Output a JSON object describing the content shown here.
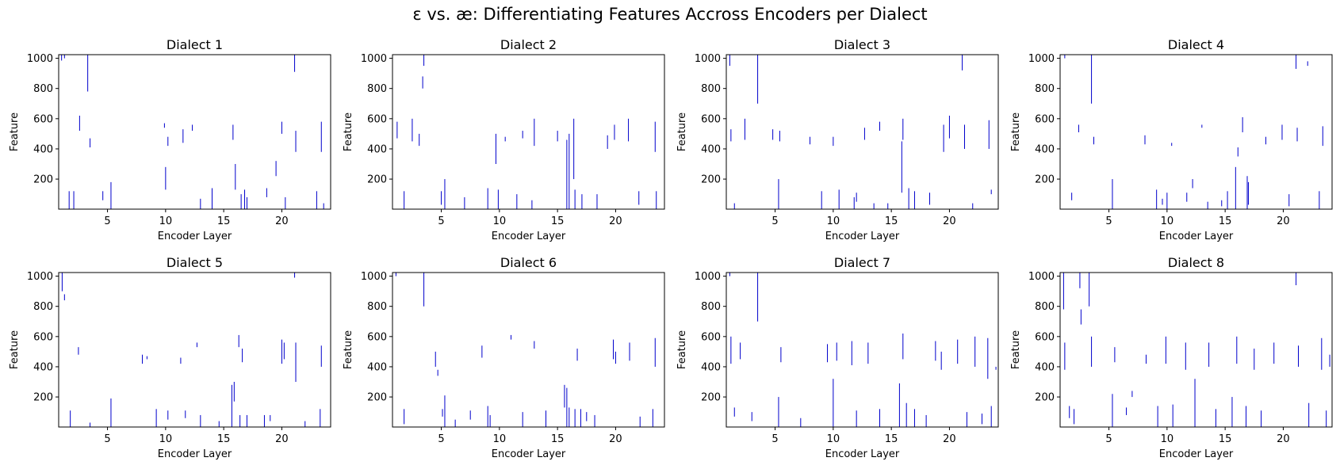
{
  "figure": {
    "title": "ɛ vs. æ: Differentiating Features Accross Encoders per Dialect"
  },
  "chart_data": {
    "type": "line",
    "xlabel": "Encoder Layer",
    "ylabel": "Feature",
    "xlim": [
      0.8,
      24.2
    ],
    "ylim": [
      1,
      1024
    ],
    "xticks": [
      5,
      10,
      15,
      20
    ],
    "yticks": [
      200,
      400,
      600,
      800,
      1000
    ],
    "line_color": "#0000cc",
    "panels": [
      {
        "title": "Dialect 1",
        "segments": [
          [
            1.05,
            985,
            1024
          ],
          [
            1.3,
            1000,
            1024
          ],
          [
            2.1,
            0,
            120
          ],
          [
            2.6,
            520,
            620
          ],
          [
            3.3,
            780,
            1024
          ],
          [
            3.5,
            410,
            470
          ],
          [
            5.3,
            0,
            180
          ],
          [
            4.6,
            60,
            120
          ],
          [
            10.0,
            130,
            280
          ],
          [
            10.2,
            420,
            480
          ],
          [
            9.9,
            540,
            570
          ],
          [
            11.5,
            440,
            530
          ],
          [
            12.3,
            520,
            560
          ],
          [
            15.8,
            460,
            560
          ],
          [
            16.0,
            130,
            300
          ],
          [
            16.5,
            0,
            100
          ],
          [
            16.8,
            0,
            130
          ],
          [
            17.0,
            0,
            80
          ],
          [
            19.5,
            220,
            320
          ],
          [
            20.0,
            500,
            580
          ],
          [
            20.3,
            0,
            80
          ],
          [
            21.1,
            910,
            1024
          ],
          [
            21.2,
            380,
            520
          ],
          [
            23.0,
            0,
            120
          ],
          [
            23.4,
            380,
            580
          ],
          [
            23.6,
            0,
            40
          ],
          [
            13.0,
            0,
            70
          ],
          [
            14.0,
            0,
            140
          ],
          [
            1.7,
            0,
            120
          ],
          [
            18.7,
            80,
            140
          ]
        ]
      },
      {
        "title": "Dialect 2",
        "segments": [
          [
            1.2,
            470,
            580
          ],
          [
            2.5,
            450,
            600
          ],
          [
            3.1,
            420,
            500
          ],
          [
            3.4,
            800,
            880
          ],
          [
            3.5,
            950,
            1024
          ],
          [
            5.3,
            0,
            200
          ],
          [
            5.0,
            30,
            120
          ],
          [
            9.7,
            300,
            500
          ],
          [
            9.0,
            0,
            140
          ],
          [
            9.9,
            0,
            130
          ],
          [
            10.5,
            450,
            480
          ],
          [
            12.0,
            470,
            520
          ],
          [
            13.0,
            420,
            600
          ],
          [
            15.0,
            450,
            520
          ],
          [
            15.8,
            0,
            460
          ],
          [
            16.0,
            0,
            500
          ],
          [
            16.4,
            200,
            600
          ],
          [
            16.5,
            0,
            130
          ],
          [
            17.1,
            0,
            100
          ],
          [
            19.3,
            400,
            490
          ],
          [
            19.9,
            460,
            560
          ],
          [
            21.1,
            450,
            600
          ],
          [
            22.0,
            30,
            120
          ],
          [
            23.4,
            380,
            580
          ],
          [
            23.5,
            0,
            120
          ],
          [
            7.0,
            0,
            80
          ],
          [
            11.5,
            0,
            100
          ],
          [
            1.8,
            0,
            120
          ],
          [
            18.4,
            0,
            100
          ],
          [
            12.8,
            0,
            60
          ]
        ]
      },
      {
        "title": "Dialect 3",
        "segments": [
          [
            1.1,
            950,
            1024
          ],
          [
            1.2,
            450,
            530
          ],
          [
            2.4,
            460,
            600
          ],
          [
            3.5,
            700,
            1024
          ],
          [
            4.8,
            460,
            530
          ],
          [
            5.3,
            0,
            200
          ],
          [
            5.4,
            450,
            520
          ],
          [
            8.0,
            430,
            480
          ],
          [
            10.0,
            420,
            480
          ],
          [
            10.5,
            0,
            130
          ],
          [
            12.7,
            460,
            540
          ],
          [
            14.0,
            520,
            580
          ],
          [
            15.9,
            110,
            450
          ],
          [
            16.0,
            460,
            600
          ],
          [
            16.5,
            0,
            140
          ],
          [
            17.0,
            0,
            120
          ],
          [
            19.5,
            380,
            560
          ],
          [
            20.0,
            470,
            620
          ],
          [
            21.1,
            920,
            1024
          ],
          [
            21.3,
            400,
            560
          ],
          [
            23.4,
            400,
            590
          ],
          [
            23.6,
            100,
            130
          ],
          [
            9.0,
            0,
            120
          ],
          [
            12.0,
            50,
            110
          ],
          [
            1.5,
            0,
            40
          ],
          [
            18.3,
            30,
            110
          ],
          [
            22.0,
            0,
            40
          ],
          [
            11.8,
            0,
            80
          ],
          [
            13.5,
            0,
            40
          ],
          [
            14.7,
            0,
            40
          ]
        ]
      },
      {
        "title": "Dialect 4",
        "segments": [
          [
            1.2,
            1000,
            1024
          ],
          [
            2.4,
            510,
            560
          ],
          [
            3.5,
            700,
            1024
          ],
          [
            3.7,
            430,
            480
          ],
          [
            5.3,
            0,
            200
          ],
          [
            8.1,
            430,
            490
          ],
          [
            9.1,
            0,
            130
          ],
          [
            10.4,
            420,
            440
          ],
          [
            12.2,
            140,
            200
          ],
          [
            13.0,
            540,
            560
          ],
          [
            15.9,
            0,
            280
          ],
          [
            16.1,
            350,
            410
          ],
          [
            16.5,
            510,
            610
          ],
          [
            16.9,
            0,
            220
          ],
          [
            17.0,
            30,
            180
          ],
          [
            18.5,
            430,
            480
          ],
          [
            19.9,
            460,
            560
          ],
          [
            21.2,
            450,
            540
          ],
          [
            21.1,
            930,
            1024
          ],
          [
            22.1,
            950,
            980
          ],
          [
            23.4,
            420,
            550
          ],
          [
            23.1,
            0,
            120
          ],
          [
            20.5,
            20,
            100
          ],
          [
            14.7,
            20,
            60
          ],
          [
            11.7,
            50,
            110
          ],
          [
            1.8,
            60,
            110
          ],
          [
            13.5,
            0,
            50
          ],
          [
            10.0,
            0,
            110
          ],
          [
            9.6,
            30,
            70
          ],
          [
            15.2,
            0,
            120
          ]
        ]
      },
      {
        "title": "Dialect 5",
        "segments": [
          [
            1.1,
            900,
            1024
          ],
          [
            1.3,
            840,
            880
          ],
          [
            2.5,
            480,
            530
          ],
          [
            1.8,
            0,
            110
          ],
          [
            5.3,
            0,
            190
          ],
          [
            8.0,
            420,
            480
          ],
          [
            8.4,
            450,
            470
          ],
          [
            10.2,
            50,
            110
          ],
          [
            11.3,
            420,
            460
          ],
          [
            12.7,
            530,
            560
          ],
          [
            15.7,
            0,
            280
          ],
          [
            15.9,
            170,
            300
          ],
          [
            16.3,
            530,
            610
          ],
          [
            16.4,
            0,
            80
          ],
          [
            17.0,
            0,
            80
          ],
          [
            16.6,
            430,
            520
          ],
          [
            18.5,
            0,
            80
          ],
          [
            20.0,
            420,
            580
          ],
          [
            20.2,
            450,
            560
          ],
          [
            21.2,
            300,
            560
          ],
          [
            21.1,
            990,
            1024
          ],
          [
            23.4,
            400,
            540
          ],
          [
            23.3,
            0,
            120
          ],
          [
            9.2,
            0,
            120
          ],
          [
            13.0,
            0,
            80
          ],
          [
            11.7,
            60,
            110
          ],
          [
            3.5,
            0,
            30
          ],
          [
            22.0,
            0,
            40
          ],
          [
            19.0,
            40,
            80
          ],
          [
            14.6,
            0,
            40
          ]
        ]
      },
      {
        "title": "Dialect 6",
        "segments": [
          [
            1.1,
            1000,
            1024
          ],
          [
            3.5,
            800,
            1024
          ],
          [
            4.5,
            400,
            500
          ],
          [
            5.3,
            0,
            210
          ],
          [
            4.7,
            340,
            380
          ],
          [
            5.1,
            70,
            120
          ],
          [
            8.5,
            460,
            540
          ],
          [
            9.0,
            0,
            140
          ],
          [
            9.2,
            0,
            80
          ],
          [
            11.0,
            580,
            610
          ],
          [
            13.0,
            520,
            570
          ],
          [
            15.6,
            130,
            280
          ],
          [
            15.8,
            0,
            260
          ],
          [
            16.0,
            0,
            130
          ],
          [
            16.5,
            0,
            120
          ],
          [
            17.0,
            0,
            120
          ],
          [
            16.7,
            440,
            520
          ],
          [
            19.8,
            450,
            580
          ],
          [
            20.0,
            420,
            500
          ],
          [
            21.2,
            440,
            560
          ],
          [
            23.2,
            0,
            120
          ],
          [
            23.4,
            400,
            590
          ],
          [
            1.8,
            20,
            120
          ],
          [
            6.2,
            0,
            50
          ],
          [
            7.5,
            50,
            110
          ],
          [
            12.0,
            0,
            100
          ],
          [
            14.0,
            0,
            110
          ],
          [
            17.5,
            40,
            100
          ],
          [
            18.2,
            0,
            80
          ],
          [
            22.1,
            0,
            70
          ]
        ]
      },
      {
        "title": "Dialect 7",
        "segments": [
          [
            1.1,
            1000,
            1024
          ],
          [
            1.2,
            420,
            600
          ],
          [
            1.5,
            70,
            130
          ],
          [
            2.0,
            450,
            560
          ],
          [
            3.5,
            700,
            1024
          ],
          [
            5.3,
            0,
            200
          ],
          [
            5.5,
            430,
            530
          ],
          [
            7.2,
            0,
            60
          ],
          [
            9.5,
            430,
            550
          ],
          [
            10.0,
            0,
            320
          ],
          [
            10.3,
            440,
            560
          ],
          [
            11.6,
            410,
            570
          ],
          [
            13.0,
            420,
            560
          ],
          [
            15.7,
            0,
            290
          ],
          [
            16.0,
            450,
            620
          ],
          [
            16.3,
            0,
            160
          ],
          [
            17.0,
            0,
            120
          ],
          [
            18.8,
            440,
            570
          ],
          [
            19.3,
            380,
            500
          ],
          [
            20.7,
            420,
            580
          ],
          [
            21.5,
            0,
            100
          ],
          [
            22.2,
            400,
            600
          ],
          [
            23.3,
            320,
            590
          ],
          [
            23.6,
            0,
            140
          ],
          [
            24.0,
            380,
            400
          ],
          [
            3.0,
            40,
            100
          ],
          [
            12.0,
            0,
            110
          ],
          [
            14.0,
            0,
            120
          ],
          [
            18.0,
            0,
            80
          ],
          [
            22.8,
            20,
            90
          ]
        ]
      },
      {
        "title": "Dialect 8",
        "segments": [
          [
            1.1,
            780,
            1024
          ],
          [
            1.2,
            380,
            560
          ],
          [
            1.6,
            60,
            140
          ],
          [
            2.5,
            920,
            1024
          ],
          [
            2.6,
            680,
            780
          ],
          [
            3.3,
            800,
            1024
          ],
          [
            3.5,
            400,
            600
          ],
          [
            5.3,
            0,
            220
          ],
          [
            5.5,
            430,
            530
          ],
          [
            7.0,
            200,
            240
          ],
          [
            9.2,
            0,
            140
          ],
          [
            9.9,
            420,
            600
          ],
          [
            11.6,
            380,
            560
          ],
          [
            12.4,
            0,
            320
          ],
          [
            13.6,
            400,
            560
          ],
          [
            15.6,
            0,
            200
          ],
          [
            16.0,
            420,
            600
          ],
          [
            16.8,
            0,
            140
          ],
          [
            17.5,
            380,
            520
          ],
          [
            19.2,
            420,
            560
          ],
          [
            21.1,
            940,
            1024
          ],
          [
            21.3,
            400,
            540
          ],
          [
            22.2,
            0,
            160
          ],
          [
            23.3,
            380,
            590
          ],
          [
            23.7,
            0,
            110
          ],
          [
            24.0,
            400,
            480
          ],
          [
            2.0,
            20,
            120
          ],
          [
            6.5,
            80,
            130
          ],
          [
            10.5,
            0,
            150
          ],
          [
            14.2,
            0,
            120
          ],
          [
            18.1,
            0,
            110
          ],
          [
            8.2,
            420,
            480
          ]
        ]
      }
    ]
  }
}
